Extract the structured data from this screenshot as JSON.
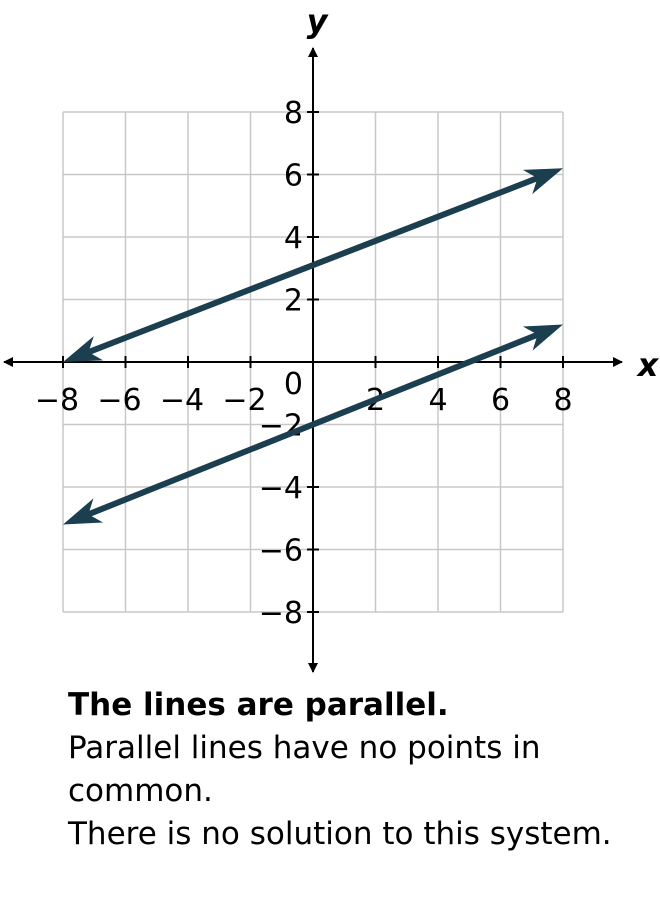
{
  "chart_data": {
    "type": "line",
    "xlabel": "x",
    "ylabel": "y",
    "xlim": [
      -8,
      8
    ],
    "ylim": [
      -8,
      8
    ],
    "grid": true,
    "x_ticks": [
      -8,
      -6,
      -4,
      -2,
      2,
      4,
      6,
      8
    ],
    "y_ticks": [
      -8,
      -6,
      -4,
      -2,
      2,
      4,
      6,
      8
    ],
    "origin_label": "0",
    "series": [
      {
        "x": [
          -8,
          8
        ],
        "y": [
          0,
          6.2
        ],
        "color": "#1b3f4f",
        "arrows": "both"
      },
      {
        "x": [
          -8,
          8
        ],
        "y": [
          -5.2,
          1.2
        ],
        "color": "#1b3f4f",
        "arrows": "both"
      }
    ]
  },
  "caption": {
    "headline": "The lines are parallel.",
    "line2": "Parallel lines have no points in common.",
    "line3": "There is no solution to this system."
  }
}
